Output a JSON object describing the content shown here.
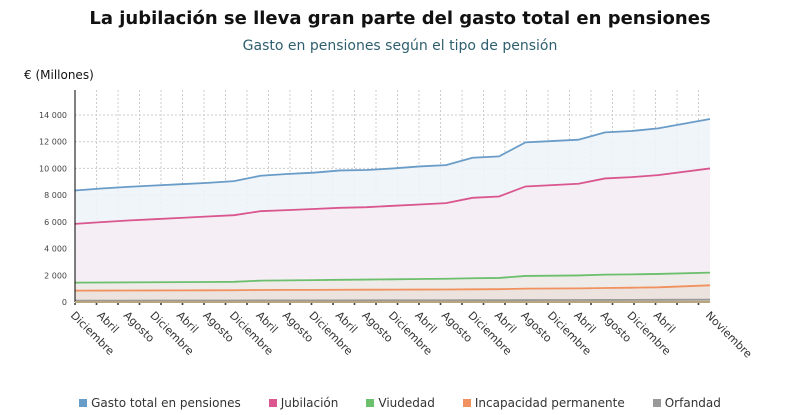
{
  "chart_data": {
    "type": "area",
    "title": "La jubilación se lleva gran parte del gasto total en pensiones",
    "subtitle": "Gasto en pensiones según el tipo de pensión",
    "ylabel": "€ (Millones)",
    "xlabel": "",
    "ylim": [
      0,
      14000
    ],
    "yticks": [
      "0",
      "2 000",
      "4 000",
      "6 000",
      "8 000",
      "10 000",
      "12 000",
      "14 000"
    ],
    "ytick_values": [
      0,
      2000,
      4000,
      6000,
      8000,
      10000,
      12000,
      14000
    ],
    "grid": true,
    "legend_position": "bottom",
    "categories": [
      "Diciembre",
      "Abril",
      "Agosto",
      "Diciembre",
      "Abril",
      "Agosto",
      "Diciembre",
      "Abril",
      "Agosto",
      "Diciembre",
      "Abril",
      "Agosto",
      "Diciembre",
      "Abril",
      "Agosto",
      "Diciembre",
      "Abril",
      "Agosto",
      "Diciembre",
      "Abril",
      "Agosto",
      "Diciembre",
      "Abril",
      "Noviembre"
    ],
    "series": [
      {
        "name": "Gasto total en pensiones",
        "color": "#6a9cc8",
        "fill": "#eef4fa",
        "values": [
          8350,
          8500,
          8620,
          8720,
          8820,
          8920,
          9050,
          9450,
          9580,
          9680,
          9850,
          9880,
          10000,
          10150,
          10250,
          10800,
          10900,
          11950,
          12050,
          12150,
          12700,
          12800,
          13000,
          13700
        ]
      },
      {
        "name": "Jubilación",
        "color": "#d9568f",
        "fill": "#f5edf3",
        "values": [
          5850,
          5980,
          6100,
          6200,
          6300,
          6400,
          6500,
          6800,
          6880,
          6960,
          7050,
          7100,
          7200,
          7300,
          7400,
          7800,
          7900,
          8650,
          8750,
          8850,
          9250,
          9350,
          9500,
          10000
        ]
      },
      {
        "name": "Viudedad",
        "color": "#6cbf6c",
        "fill": "#eeeae8",
        "values": [
          1450,
          1460,
          1470,
          1480,
          1490,
          1500,
          1510,
          1600,
          1620,
          1640,
          1660,
          1680,
          1700,
          1720,
          1740,
          1780,
          1800,
          1950,
          1970,
          1990,
          2050,
          2070,
          2100,
          2200
        ]
      },
      {
        "name": "Incapacidad permanente",
        "color": "#f0915e",
        "fill": "#ebe2de",
        "values": [
          850,
          855,
          860,
          865,
          870,
          875,
          880,
          900,
          905,
          910,
          915,
          920,
          925,
          930,
          935,
          950,
          960,
          1000,
          1010,
          1020,
          1050,
          1070,
          1100,
          1250
        ]
      },
      {
        "name": "Orfandad",
        "color": "#999999",
        "fill": "#d8cbb5",
        "values": [
          100,
          102,
          104,
          106,
          108,
          110,
          112,
          118,
          120,
          122,
          124,
          126,
          128,
          130,
          132,
          136,
          138,
          146,
          148,
          150,
          156,
          160,
          165,
          180
        ]
      }
    ]
  }
}
